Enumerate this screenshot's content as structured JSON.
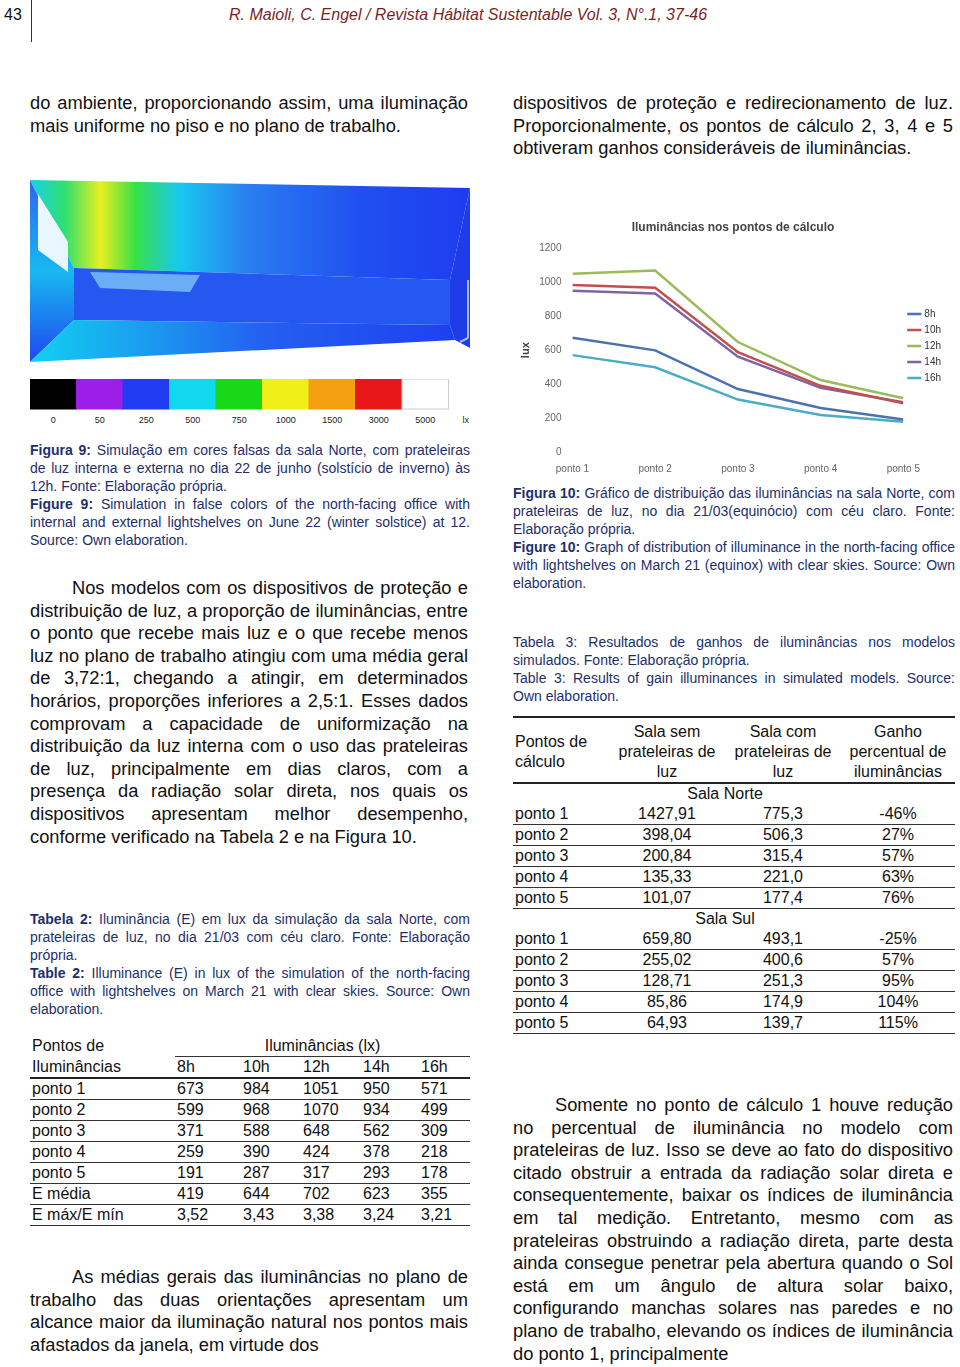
{
  "header": {
    "page": "43",
    "citation": "R. Maioli, C. Engel / Revista Hábitat Sustentable Vol. 3, N°.1, 37-46"
  },
  "left_column": {
    "paragraph_1": "do ambiente, proporcionando assim, uma iluminação mais uniforme no piso e no plano de trabalho.",
    "figure_9": {
      "color_scale": {
        "ticks": [
          0,
          50,
          250,
          500,
          750,
          1000,
          1500,
          3000,
          5000
        ],
        "unit": "lx",
        "colors": [
          "#000000",
          "#9b1fe8",
          "#1f3cf2",
          "#12d8f0",
          "#18d818",
          "#f0f018",
          "#f4a010",
          "#e81818",
          "#ffffff"
        ]
      },
      "caption_pt": {
        "label": "Figura 9:",
        "text": "Simulação em cores falsas da sala Norte, com prateleiras de luz interna e externa no dia 22 de junho (solstício de inverno) às 12h. Fonte: Elaboração própria."
      },
      "caption_en": {
        "label": "Figure 9:",
        "text": "Simulation in false colors of the north-facing office with internal and external lightshelves on June 22 (winter solstice) at 12. Source: Own elaboration."
      }
    },
    "paragraph_2": "Nos modelos com os dispositivos de proteção e distribuição de luz, a proporção de iluminâncias, entre o ponto que recebe mais luz e o que recebe menos luz no plano de trabalho atingiu com uma média geral de 3,72:1, chegando a atingir, em determinados horários, proporções inferiores a 2,5:1. Esses dados comprovam a capacidade de uniformização na distribuição da luz interna com o uso das prateleiras de luz, principalmente em dias claros, com a presença da radiação solar direta, nos quais os dispositivos apresentam melhor desempenho, conforme verificado na Tabela 2 e na Figura 10.",
    "table_2": {
      "caption_pt": {
        "label": "Tabela 2:",
        "text": "Iluminância (E) em lux da simulação da sala Norte, com prateleiras de luz, no dia 21/03 com céu claro. Fonte: Elaboração própria."
      },
      "caption_en": {
        "label": "Table 2:",
        "text": "Illuminance (E) in lux of the simulation of the north-facing office with lightshelves on March 21 with clear skies. Source: Own elaboration."
      },
      "header": {
        "row_label": [
          "Pontos de",
          "Iluminâncias"
        ],
        "group": "Iluminâncias (lx)",
        "columns": [
          "8h",
          "10h",
          "12h",
          "14h",
          "16h"
        ]
      },
      "rows": [
        [
          "ponto 1",
          "673",
          "984",
          "1051",
          "950",
          "571"
        ],
        [
          "ponto 2",
          "599",
          "968",
          "1070",
          "934",
          "499"
        ],
        [
          "ponto 3",
          "371",
          "588",
          "648",
          "562",
          "309"
        ],
        [
          "ponto 4",
          "259",
          "390",
          "424",
          "378",
          "218"
        ],
        [
          "ponto 5",
          "191",
          "287",
          "317",
          "293",
          "178"
        ],
        [
          "E média",
          "419",
          "644",
          "702",
          "623",
          "355"
        ],
        [
          "E máx/E mín",
          "3,52",
          "3,43",
          "3,38",
          "3,24",
          "3,21"
        ]
      ]
    },
    "paragraph_3": "As médias gerais das iluminâncias no plano de trabalho das duas orientações apresentam um alcance maior da iluminação natural nos pontos mais afastados da janela, em virtude dos"
  },
  "right_column": {
    "paragraph_1": "dispositivos de proteção e redirecionamento de luz. Proporcionalmente, os pontos de cálculo 2, 3, 4 e 5 obtiveram ganhos consideráveis de iluminâncias.",
    "figure_10": {
      "caption_pt": {
        "label": "Figura 10:",
        "text": "Gráfico de distribuição das iluminâncias na sala Norte, com prateleiras de luz, no dia 21/03(equinócio) com céu claro. Fonte: Elaboração própria."
      },
      "caption_en": {
        "label": "Figure 10:",
        "text": "Graph of distribution of illuminance in the north-facing office with lightshelves on March 21 (equinox) with clear skies. Source: Own elaboration."
      }
    },
    "table_3": {
      "caption_pt": {
        "label": "Tabela 3:",
        "text": "Resultados de ganhos de iluminâncias nos modelos simulados. Fonte: Elaboração própria."
      },
      "caption_en": {
        "label": "Table 3:",
        "text": "Results of gain illuminances in simulated models. Source: Own elaboration."
      },
      "header": [
        "Pontos de cálculo",
        "Sala sem prateleiras de luz",
        "Sala com prateleiras de luz",
        "Ganho percentual de iluminâncias"
      ],
      "sections": [
        {
          "title": "Sala Norte",
          "rows": [
            [
              "ponto 1",
              "1427,91",
              "775,3",
              "-46%"
            ],
            [
              "ponto 2",
              "398,04",
              "506,3",
              "27%"
            ],
            [
              "ponto 3",
              "200,84",
              "315,4",
              "57%"
            ],
            [
              "ponto 4",
              "135,33",
              "221,0",
              "63%"
            ],
            [
              "ponto 5",
              "101,07",
              "177,4",
              "76%"
            ]
          ]
        },
        {
          "title": "Sala Sul",
          "rows": [
            [
              "ponto 1",
              "659,80",
              "493,1",
              "-25%"
            ],
            [
              "ponto 2",
              "255,02",
              "400,6",
              "57%"
            ],
            [
              "ponto 3",
              "128,71",
              "251,3",
              "95%"
            ],
            [
              "ponto 4",
              "85,86",
              "174,9",
              "104%"
            ],
            [
              "ponto 5",
              "64,93",
              "139,7",
              "115%"
            ]
          ]
        }
      ]
    },
    "paragraph_2": "Somente no ponto de cálculo 1 houve redução no percentual de iluminância no modelo com prateleiras de luz. Isso se deve ao fato do dispositivo citado obstruir a entrada da radiação solar direta e consequentemente, baixar os índices de iluminância em tal medição. Entretanto, mesmo com as prateleiras obstruindo a radiação direta, parte desta ainda consegue penetrar pela abertura quando o Sol está em um ângulo de altura solar baixo, configurando manchas solares nas paredes e no plano de trabalho, elevando os índices de iluminância do ponto 1, principalmente"
  },
  "chart_data": {
    "type": "line",
    "title": "Iluminâncias nos pontos de cálculo",
    "y_label": "lux",
    "categories": [
      "ponto 1",
      "ponto 2",
      "ponto 3",
      "ponto 4",
      "ponto 5"
    ],
    "series": [
      {
        "name": "8h",
        "color": "#4a72b0",
        "values": [
          673,
          599,
          371,
          259,
          191
        ]
      },
      {
        "name": "10h",
        "color": "#c0504d",
        "values": [
          984,
          968,
          588,
          390,
          287
        ]
      },
      {
        "name": "12h",
        "color": "#9bbb59",
        "values": [
          1051,
          1070,
          648,
          424,
          317
        ]
      },
      {
        "name": "14h",
        "color": "#8064a2",
        "values": [
          950,
          934,
          562,
          378,
          293
        ]
      },
      {
        "name": "16h",
        "color": "#4bacc6",
        "values": [
          571,
          499,
          309,
          218,
          178
        ]
      }
    ],
    "ylim": [
      0,
      1200
    ],
    "yticks": [
      0,
      200,
      400,
      600,
      800,
      1000,
      1200
    ],
    "grid": false,
    "legend": "right"
  }
}
